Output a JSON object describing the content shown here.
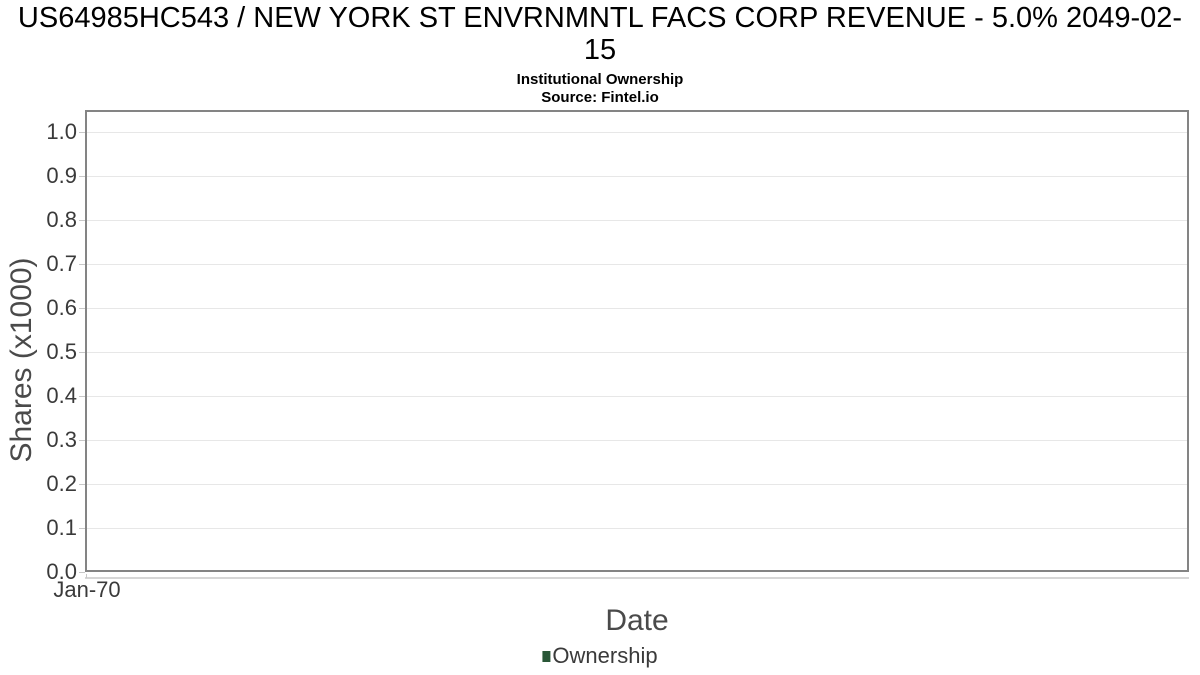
{
  "header": {
    "title_line1": "US64985HC543 / NEW YORK ST ENVRNMNTL FACS CORP REVENUE - 5.0% 2049-02-",
    "title_line2": "15",
    "subtitle": "Institutional Ownership",
    "source": "Source: Fintel.io"
  },
  "chart_data": {
    "type": "line",
    "title": "US64985HC543 / NEW YORK ST ENVRNMNTL FACS CORP REVENUE - 5.0% 2049-02-15",
    "subtitle": "Institutional Ownership",
    "source": "Source: Fintel.io",
    "xlabel": "Date",
    "ylabel": "Shares (x1000)",
    "x_tick_labels": [
      "Jan-70"
    ],
    "y_ticks": [
      0.0,
      0.1,
      0.2,
      0.3,
      0.4,
      0.5,
      0.6,
      0.7,
      0.8,
      0.9,
      1.0
    ],
    "y_tick_decimals": 1,
    "ylim": [
      0,
      1.05
    ],
    "grid": "horizontal",
    "legend_position": "bottom",
    "series": [
      {
        "name": "Ownership",
        "color": "#2a5737",
        "x": [],
        "values": []
      }
    ]
  },
  "legend": {
    "items": [
      {
        "label": "Ownership",
        "color": "#2a5737"
      }
    ]
  },
  "colors": {
    "title": "#000000",
    "plot_border": "#848484",
    "gridline": "#e7e7e7",
    "tick": "#c8c8c8",
    "axis_line": "#d6d6d6",
    "tick_text": "#3a3a3a",
    "axis_title_text": "#4a4a4a",
    "legend_marker": "#2a5737",
    "background": "#ffffff"
  }
}
